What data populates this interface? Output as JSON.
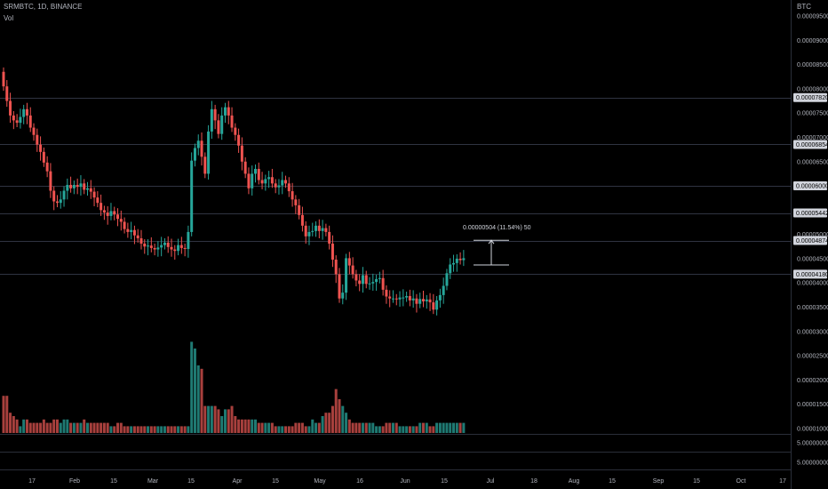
{
  "header": {
    "symbol_line": "SRMBTC, 1D, BINANCE",
    "vol_label": "Vol",
    "currency": "BTC"
  },
  "measure_label": "0.00000504 (11.54%) 50",
  "colors": {
    "up": "#26a69a",
    "down": "#ef5350",
    "up_vol": "#1f7a73",
    "down_vol": "#a8403d",
    "grid": "#2a2e39",
    "tag_bg": "#d1d4dc"
  },
  "chart_data": {
    "type": "candlestick",
    "title": "SRMBTC, 1D, BINANCE",
    "y_axis_labels": [
      "0.00009500",
      "0.00009000",
      "0.00008500",
      "0.00008000",
      "0.00007500",
      "0.00007000",
      "0.00006500",
      "0.00005000",
      "0.00004500",
      "0.00004000",
      "0.00003500",
      "0.00003000",
      "0.00002500",
      "0.00002000",
      "0.00001500",
      "0.00001000",
      "5.00000000",
      "5.00000000"
    ],
    "y_axis_values": [
      9.5e-05,
      9e-05,
      8.5e-05,
      8e-05,
      7.5e-05,
      7e-05,
      6.5e-05,
      5e-05,
      4.5e-05,
      4e-05,
      3.5e-05,
      3e-05,
      2.5e-05,
      2e-05,
      1.5e-05,
      1e-05,
      null,
      null
    ],
    "price_tags": [
      "0.00007820",
      "0.00006854",
      "0.00006000",
      "0.00005442",
      "0.00004874",
      "0.00004180"
    ],
    "price_tag_values": [
      7.82e-05,
      6.854e-05,
      6e-05,
      5.442e-05,
      4.874e-05,
      4.18e-05
    ],
    "x_axis_labels": [
      "17",
      "Feb",
      "15",
      "Mar",
      "15",
      "Apr",
      "15",
      "May",
      "16",
      "Jun",
      "15",
      "Jul",
      "18",
      "Aug",
      "15",
      "Sep",
      "15",
      "Oct",
      "17"
    ],
    "close_series": [
      8.05e-05,
      7.75e-05,
      7.45e-05,
      7.35e-05,
      7.3e-05,
      7.42e-05,
      7.58e-05,
      7.45e-05,
      7.2e-05,
      7.05e-05,
      6.85e-05,
      6.7e-05,
      6.48e-05,
      6.3e-05,
      5.9e-05,
      5.68e-05,
      5.65e-05,
      5.72e-05,
      5.9e-05,
      6.02e-05,
      5.95e-05,
      6.02e-05,
      5.98e-05,
      6.05e-05,
      5.92e-05,
      5.95e-05,
      5.88e-05,
      5.76e-05,
      5.65e-05,
      5.5e-05,
      5.45e-05,
      5.38e-05,
      5.48e-05,
      5.41e-05,
      5.32e-05,
      5.26e-05,
      5.11e-05,
      5.05e-05,
      5.09e-05,
      4.98e-05,
      4.92e-05,
      4.81e-05,
      4.75e-05,
      4.77e-05,
      4.72e-05,
      4.69e-05,
      4.73e-05,
      4.78e-05,
      4.83e-05,
      4.74e-05,
      4.69e-05,
      4.66e-05,
      4.78e-05,
      4.72e-05,
      4.7e-05,
      5.05e-05,
      6.52e-05,
      6.78e-05,
      6.93e-05,
      6.6e-05,
      6.25e-05,
      7.12e-05,
      7.58e-05,
      7.35e-05,
      7.07e-05,
      7.45e-05,
      7.62e-05,
      7.45e-05,
      7.2e-05,
      7.05e-05,
      6.83e-05,
      6.5e-05,
      6.25e-05,
      5.95e-05,
      6.25e-05,
      6.35e-05,
      6.12e-05,
      6.05e-05,
      6.14e-05,
      6.18e-05,
      6.05e-05,
      5.97e-05,
      6.01e-05,
      6.12e-05,
      6.05e-05,
      5.89e-05,
      5.72e-05,
      5.6e-05,
      5.4e-05,
      5.18e-05,
      4.96e-05,
      5.05e-05,
      5.07e-05,
      5.18e-05,
      5.07e-05,
      5.13e-05,
      5.05e-05,
      4.81e-05,
      4.48e-05,
      4.18e-05,
      3.68e-05,
      3.8e-05,
      4.51e-05,
      4.36e-05,
      4.18e-05,
      4.05e-05,
      3.98e-05,
      4.16e-05,
      3.98e-05,
      3.99e-05,
      4.02e-05,
      4.08e-05,
      4.1e-05,
      3.86e-05,
      3.72e-05,
      3.68e-05,
      3.68e-05,
      3.66e-05,
      3.7e-05,
      3.7e-05,
      3.73e-05,
      3.64e-05,
      3.68e-05,
      3.57e-05,
      3.67e-05,
      3.62e-05,
      3.66e-05,
      3.6e-05,
      3.45e-05,
      3.64e-05,
      3.75e-05,
      3.94e-05,
      4.2e-05,
      4.38e-05,
      4.41e-05,
      4.5e-05,
      4.47e-05,
      4.51e-05
    ],
    "volume_series": [
      11,
      11,
      6,
      5,
      4,
      2,
      4,
      4,
      3,
      3,
      3,
      3,
      4,
      3,
      3,
      4,
      4,
      3,
      4,
      4,
      3,
      3,
      3,
      3,
      4,
      3,
      3,
      3,
      3,
      3,
      3,
      3,
      2,
      2,
      3,
      3,
      2,
      2,
      2,
      2,
      2,
      2,
      2,
      2,
      2,
      2,
      2,
      2,
      2,
      2,
      2,
      2,
      2,
      2,
      2,
      2,
      27,
      25,
      20,
      19,
      8,
      8,
      8,
      8,
      7,
      5,
      7,
      7,
      8,
      5,
      4,
      4,
      4,
      4,
      4,
      4,
      3,
      3,
      3,
      3,
      3,
      2,
      2,
      2,
      2,
      2,
      2,
      3,
      3,
      3,
      2,
      2,
      4,
      3,
      3,
      5,
      6,
      6,
      8,
      13,
      10,
      8,
      6,
      4,
      3,
      3,
      3,
      3,
      3,
      3,
      3,
      2,
      2,
      2,
      3,
      3,
      3,
      3,
      2,
      2,
      2,
      2,
      2,
      2,
      3,
      3,
      3,
      2,
      2,
      3,
      3,
      3,
      3,
      3,
      3,
      3,
      3,
      3
    ],
    "measure": {
      "from": 4.37e-05,
      "to": 4.88e-05
    },
    "grid": false,
    "legend": "top-left"
  }
}
